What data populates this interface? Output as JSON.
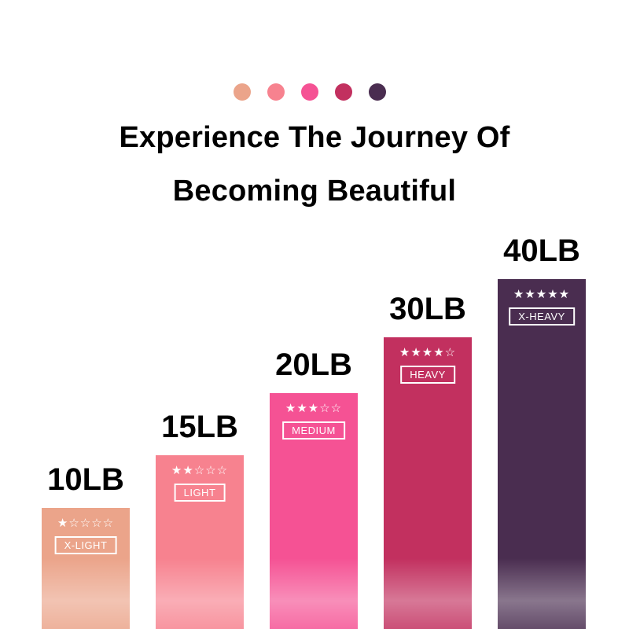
{
  "header": {
    "dot_colors": [
      "#eba48a",
      "#f7828f",
      "#f55294",
      "#c2305f",
      "#4a2d50"
    ],
    "title_line1": "Experience The Journey Of",
    "title_line2": "Becoming Beautiful"
  },
  "chart_data": {
    "type": "bar",
    "categories": [
      "10LB",
      "15LB",
      "20LB",
      "30LB",
      "40LB"
    ],
    "values": [
      10,
      15,
      20,
      30,
      40
    ],
    "unit": "LB",
    "levels": [
      "X-LIGHT",
      "LIGHT",
      "MEDIUM",
      "HEAVY",
      "X-HEAVY"
    ],
    "ratings": [
      1,
      2,
      3,
      4,
      5
    ],
    "rating_max": 5,
    "colors": [
      "#eba48a",
      "#f7828f",
      "#f55294",
      "#c2305f",
      "#4a2d50"
    ],
    "grid": false
  }
}
